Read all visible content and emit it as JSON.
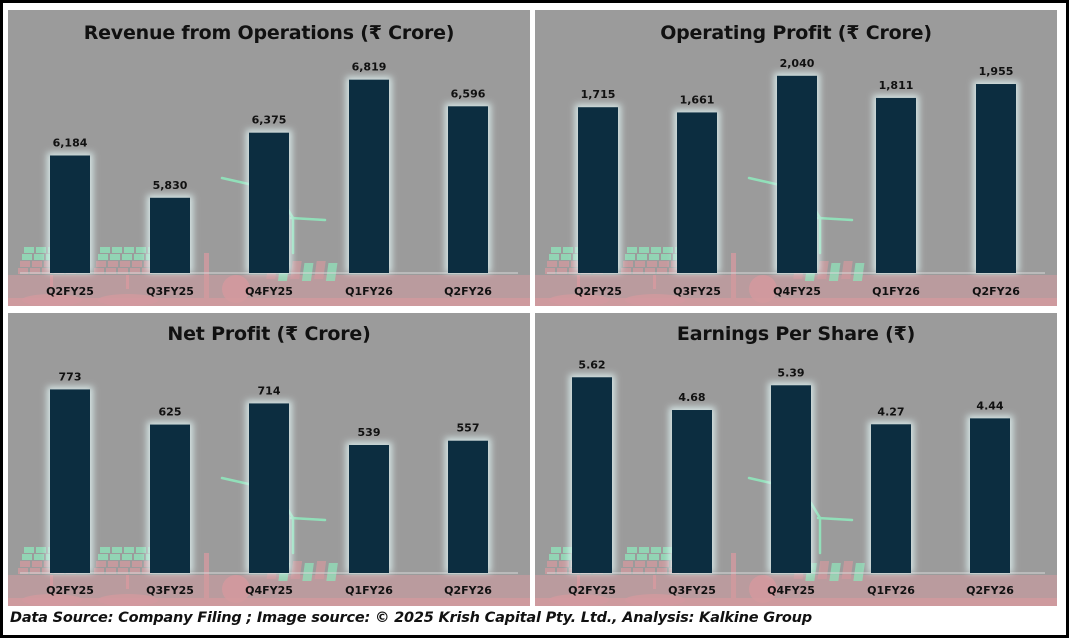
{
  "footer": {
    "text": "Data Source: Company Filing ; Image source: © 2025 Krish Capital Pty. Ltd., Analysis: Kalkine Group"
  },
  "colors": {
    "bar": "#0c2d40",
    "panel_bg": "#9b9b9b",
    "glow": "#dff2f2",
    "decor_pink": "#d99aa0",
    "decor_green": "#8ff0c0"
  },
  "chart_data": [
    {
      "type": "bar",
      "title": "Revenue from Operations (₹ Crore)",
      "categories": [
        "Q2FY25",
        "Q3FY25",
        "Q4FY25",
        "Q1FY26",
        "Q2FY26"
      ],
      "values": [
        6184,
        5830,
        6375,
        6819,
        6596
      ],
      "labels": [
        "6,184",
        "5,830",
        "6,375",
        "6,819",
        "6,596"
      ],
      "xlabel": "",
      "ylabel": "",
      "ylim": [
        5200,
        6900
      ],
      "grid": false,
      "legend": "none"
    },
    {
      "type": "bar",
      "title": "Operating Profit (₹ Crore)",
      "categories": [
        "Q2FY25",
        "Q3FY25",
        "Q4FY25",
        "Q1FY26",
        "Q2FY26"
      ],
      "values": [
        1715,
        1661,
        2040,
        1811,
        1955
      ],
      "labels": [
        "1,715",
        "1,661",
        "2,040",
        "1,811",
        "1,955"
      ],
      "xlabel": "",
      "ylabel": "",
      "ylim": [
        0,
        2100
      ],
      "grid": false,
      "legend": "none"
    },
    {
      "type": "bar",
      "title": "Net Profit (₹ Crore)",
      "categories": [
        "Q2FY25",
        "Q3FY25",
        "Q4FY25",
        "Q1FY26",
        "Q2FY26"
      ],
      "values": [
        773,
        625,
        714,
        539,
        557
      ],
      "labels": [
        "773",
        "625",
        "714",
        "539",
        "557"
      ],
      "xlabel": "",
      "ylabel": "",
      "ylim": [
        0,
        800
      ],
      "grid": false,
      "legend": "none"
    },
    {
      "type": "bar",
      "title": "Earnings Per Share (₹)",
      "categories": [
        "Q2FY25",
        "Q3FY25",
        "Q4FY25",
        "Q1FY26",
        "Q2FY26"
      ],
      "values": [
        5.62,
        4.68,
        5.39,
        4.27,
        4.44
      ],
      "labels": [
        "5.62",
        "4.68",
        "5.39",
        "4.27",
        "4.44"
      ],
      "xlabel": "",
      "ylabel": "",
      "ylim": [
        0,
        5.8
      ],
      "grid": false,
      "legend": "none"
    }
  ]
}
